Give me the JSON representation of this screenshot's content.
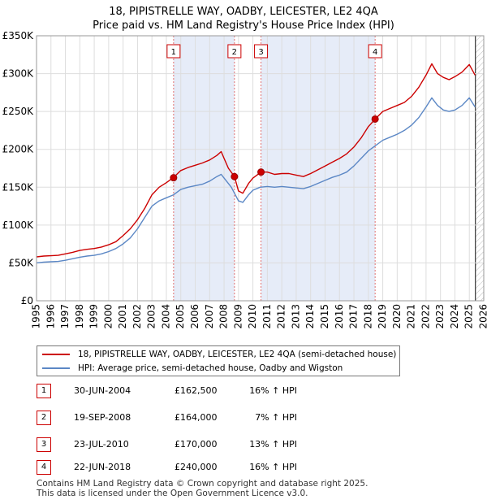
{
  "chart_data": {
    "type": "line",
    "title": "18, PIPISTRELLE WAY, OADBY, LEICESTER, LE2 4QA",
    "subtitle": "Price paid vs. HM Land Registry's House Price Index (HPI)",
    "xlim": [
      1995,
      2026
    ],
    "ylim": [
      0,
      350000
    ],
    "y_ticks": [
      {
        "value": 0,
        "label": "£0"
      },
      {
        "value": 50000,
        "label": "£50K"
      },
      {
        "value": 100000,
        "label": "£100K"
      },
      {
        "value": 150000,
        "label": "£150K"
      },
      {
        "value": 200000,
        "label": "£200K"
      },
      {
        "value": 250000,
        "label": "£250K"
      },
      {
        "value": 300000,
        "label": "£300K"
      },
      {
        "value": 350000,
        "label": "£350K"
      }
    ],
    "x_ticks": [
      "1995",
      "1996",
      "1997",
      "1998",
      "1999",
      "2000",
      "2001",
      "2002",
      "2003",
      "2004",
      "2005",
      "2006",
      "2007",
      "2008",
      "2009",
      "2010",
      "2011",
      "2012",
      "2013",
      "2014",
      "2015",
      "2016",
      "2017",
      "2018",
      "2019",
      "2020",
      "2021",
      "2022",
      "2023",
      "2024",
      "2025",
      "2026"
    ],
    "grid": true,
    "series": [
      {
        "name": "18, PIPISTRELLE WAY, OADBY, LEICESTER, LE2 4QA (semi-detached house)",
        "color": "#cc0000",
        "points": [
          [
            1995.0,
            58000
          ],
          [
            1995.5,
            59000
          ],
          [
            1996.0,
            59500
          ],
          [
            1996.5,
            60000
          ],
          [
            1997.0,
            62000
          ],
          [
            1997.5,
            64000
          ],
          [
            1998.0,
            66500
          ],
          [
            1998.5,
            68000
          ],
          [
            1999.0,
            69000
          ],
          [
            1999.5,
            71000
          ],
          [
            2000.0,
            74000
          ],
          [
            2000.5,
            78000
          ],
          [
            2001.0,
            86000
          ],
          [
            2001.5,
            95000
          ],
          [
            2002.0,
            107000
          ],
          [
            2002.5,
            122000
          ],
          [
            2003.0,
            140000
          ],
          [
            2003.5,
            150000
          ],
          [
            2004.0,
            156000
          ],
          [
            2004.5,
            163000
          ],
          [
            2005.0,
            172000
          ],
          [
            2005.5,
            176000
          ],
          [
            2006.0,
            179000
          ],
          [
            2006.5,
            182000
          ],
          [
            2007.0,
            186000
          ],
          [
            2007.5,
            192000
          ],
          [
            2007.8,
            197000
          ],
          [
            2008.0,
            188000
          ],
          [
            2008.3,
            175000
          ],
          [
            2008.72,
            164000
          ],
          [
            2009.0,
            145000
          ],
          [
            2009.3,
            142000
          ],
          [
            2009.7,
            155000
          ],
          [
            2010.0,
            162000
          ],
          [
            2010.56,
            170000
          ],
          [
            2011.0,
            170000
          ],
          [
            2011.5,
            167000
          ],
          [
            2012.0,
            168000
          ],
          [
            2012.5,
            168000
          ],
          [
            2013.0,
            166000
          ],
          [
            2013.5,
            164000
          ],
          [
            2014.0,
            168000
          ],
          [
            2014.5,
            173000
          ],
          [
            2015.0,
            178000
          ],
          [
            2015.5,
            183000
          ],
          [
            2016.0,
            188000
          ],
          [
            2016.5,
            194000
          ],
          [
            2017.0,
            203000
          ],
          [
            2017.5,
            215000
          ],
          [
            2018.0,
            230000
          ],
          [
            2018.47,
            240000
          ],
          [
            2019.0,
            250000
          ],
          [
            2019.5,
            254000
          ],
          [
            2020.0,
            258000
          ],
          [
            2020.5,
            262000
          ],
          [
            2021.0,
            270000
          ],
          [
            2021.5,
            282000
          ],
          [
            2022.0,
            298000
          ],
          [
            2022.4,
            313000
          ],
          [
            2022.8,
            300000
          ],
          [
            2023.2,
            295000
          ],
          [
            2023.6,
            292000
          ],
          [
            2024.0,
            296000
          ],
          [
            2024.5,
            302000
          ],
          [
            2025.0,
            312000
          ],
          [
            2025.4,
            298000
          ]
        ]
      },
      {
        "name": "HPI: Average price, semi-detached house, Oadby and Wigston",
        "color": "#5b87c5",
        "points": [
          [
            1995.0,
            50000
          ],
          [
            1995.5,
            51000
          ],
          [
            1996.0,
            51500
          ],
          [
            1996.5,
            52000
          ],
          [
            1997.0,
            53500
          ],
          [
            1997.5,
            55500
          ],
          [
            1998.0,
            57500
          ],
          [
            1998.5,
            59000
          ],
          [
            1999.0,
            60000
          ],
          [
            1999.5,
            62000
          ],
          [
            2000.0,
            65000
          ],
          [
            2000.5,
            69000
          ],
          [
            2001.0,
            75000
          ],
          [
            2001.5,
            83000
          ],
          [
            2002.0,
            95000
          ],
          [
            2002.5,
            110000
          ],
          [
            2003.0,
            125000
          ],
          [
            2003.5,
            132000
          ],
          [
            2004.0,
            136000
          ],
          [
            2004.5,
            140000
          ],
          [
            2005.0,
            147000
          ],
          [
            2005.5,
            150000
          ],
          [
            2006.0,
            152000
          ],
          [
            2006.5,
            154000
          ],
          [
            2007.0,
            158000
          ],
          [
            2007.5,
            164000
          ],
          [
            2007.8,
            167000
          ],
          [
            2008.0,
            162000
          ],
          [
            2008.5,
            150000
          ],
          [
            2009.0,
            132000
          ],
          [
            2009.3,
            130000
          ],
          [
            2009.7,
            140000
          ],
          [
            2010.0,
            146000
          ],
          [
            2010.5,
            150000
          ],
          [
            2011.0,
            151000
          ],
          [
            2011.5,
            150000
          ],
          [
            2012.0,
            151000
          ],
          [
            2012.5,
            150000
          ],
          [
            2013.0,
            149000
          ],
          [
            2013.5,
            148000
          ],
          [
            2014.0,
            151000
          ],
          [
            2014.5,
            155000
          ],
          [
            2015.0,
            159000
          ],
          [
            2015.5,
            163000
          ],
          [
            2016.0,
            166000
          ],
          [
            2016.5,
            170000
          ],
          [
            2017.0,
            178000
          ],
          [
            2017.5,
            188000
          ],
          [
            2018.0,
            198000
          ],
          [
            2018.5,
            205000
          ],
          [
            2019.0,
            212000
          ],
          [
            2019.5,
            216000
          ],
          [
            2020.0,
            220000
          ],
          [
            2020.5,
            225000
          ],
          [
            2021.0,
            232000
          ],
          [
            2021.5,
            242000
          ],
          [
            2022.0,
            256000
          ],
          [
            2022.4,
            268000
          ],
          [
            2022.8,
            258000
          ],
          [
            2023.2,
            252000
          ],
          [
            2023.6,
            250000
          ],
          [
            2024.0,
            252000
          ],
          [
            2024.5,
            258000
          ],
          [
            2025.0,
            268000
          ],
          [
            2025.4,
            256000
          ]
        ]
      }
    ],
    "sales": [
      {
        "id": "1",
        "t": 2004.5,
        "date": "30-JUN-2004",
        "price_value": 162500,
        "price": "£162,500",
        "hpi": "16% ↑ HPI"
      },
      {
        "id": "2",
        "t": 2008.72,
        "date": "19-SEP-2008",
        "price_value": 164000,
        "price": "£164,000",
        "hpi": "7% ↑ HPI"
      },
      {
        "id": "3",
        "t": 2010.56,
        "date": "23-JUL-2010",
        "price_value": 170000,
        "price": "£170,000",
        "hpi": "13% ↑ HPI"
      },
      {
        "id": "4",
        "t": 2018.47,
        "date": "22-JUN-2018",
        "price_value": 240000,
        "price": "£240,000",
        "hpi": "16% ↑ HPI"
      }
    ],
    "shaded_ranges": [
      [
        2004.5,
        2008.72
      ],
      [
        2010.56,
        2018.47
      ]
    ],
    "future_from": 2025.42
  },
  "legend": {
    "property_label": "18, PIPISTRELLE WAY, OADBY, LEICESTER, LE2 4QA (semi-detached house)",
    "hpi_label": "HPI: Average price, semi-detached house, Oadby and Wigston"
  },
  "footer": {
    "line1": "Contains HM Land Registry data © Crown copyright and database right 2025.",
    "line2": "This data is licensed under the Open Government Licence v3.0."
  }
}
